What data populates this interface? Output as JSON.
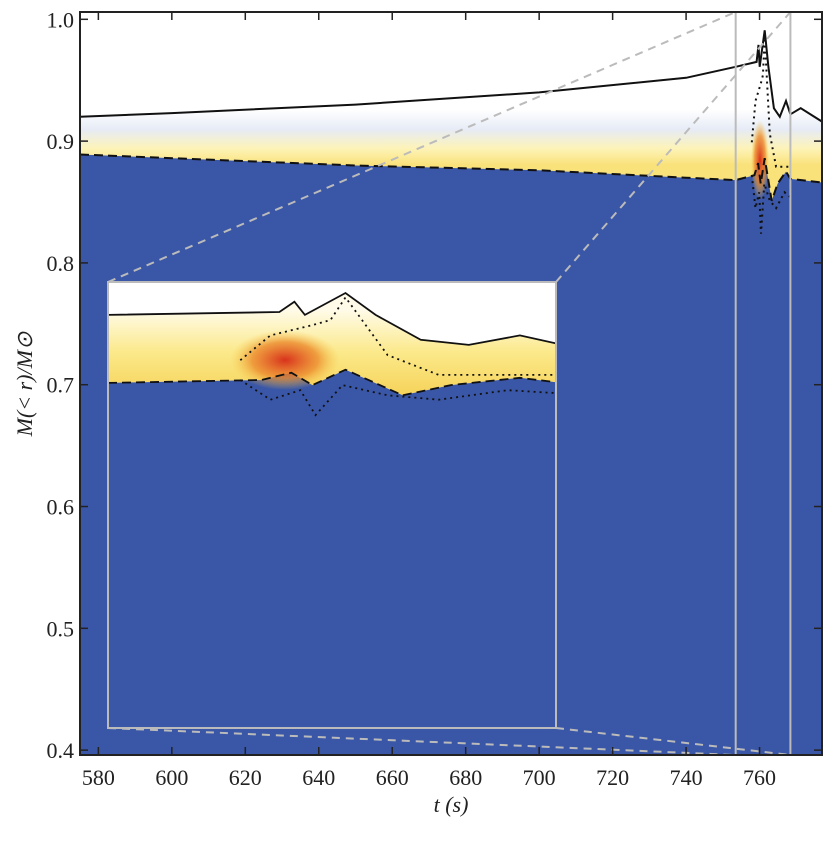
{
  "chart_data": {
    "type": "line",
    "xlabel": "t (s)",
    "ylabel": "M(< r)/M⊙",
    "xlim": [
      575,
      777
    ],
    "ylim": [
      0.396,
      1.006
    ],
    "xticks": [
      580,
      600,
      620,
      640,
      660,
      680,
      700,
      720,
      740,
      760
    ],
    "yticks": [
      0.4,
      0.5,
      0.6,
      0.7,
      0.8,
      0.9,
      {
        "value": 1.0,
        "label": "1.0"
      }
    ],
    "zoom_xlim": [
      753.5,
      768.4
    ],
    "series": [
      {
        "color": "#111111",
        "dash": "solid",
        "x": [
          575,
          600,
          650,
          700,
          740,
          753.5,
          759.2,
          759.7,
          760.05,
          761.4,
          762.4,
          763.9,
          765.5,
          767.2,
          768.4,
          771.2,
          777
        ],
        "values": [
          0.92,
          0.923,
          0.93,
          0.94,
          0.952,
          0.961,
          0.965,
          0.979,
          0.961,
          0.991,
          0.961,
          0.927,
          0.92,
          0.933,
          0.922,
          0.927,
          0.916
        ]
      },
      {
        "color": "#111111",
        "dash": "dashed",
        "x": [
          575,
          650,
          700,
          740,
          753.5,
          758.6,
          759.6,
          760.3,
          761.4,
          763.3,
          764.9,
          767.2,
          768.4,
          777
        ],
        "values": [
          0.889,
          0.88,
          0.876,
          0.87,
          0.868,
          0.872,
          0.882,
          0.865,
          0.886,
          0.851,
          0.865,
          0.875,
          0.869,
          0.866
        ]
      },
      {
        "color": "#111111",
        "dash": "dotted",
        "x": [
          757.9,
          758.9,
          760.3,
          760.9,
          761.4,
          762.8,
          764.5,
          768.4
        ],
        "values": [
          0.899,
          0.933,
          0.947,
          0.954,
          0.985,
          0.906,
          0.879,
          0.879
        ]
      },
      {
        "color": "#111111",
        "dash": "dotted",
        "x": [
          757.9,
          758.9,
          759.9,
          760.4,
          761.3,
          762.8,
          764.5,
          766.8,
          768.4
        ],
        "values": [
          0.872,
          0.845,
          0.858,
          0.824,
          0.865,
          0.851,
          0.845,
          0.858,
          0.854
        ]
      }
    ]
  }
}
